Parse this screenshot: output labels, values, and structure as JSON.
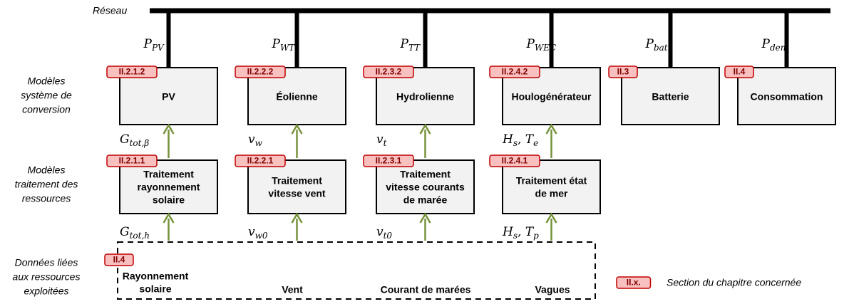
{
  "network_label": "Réseau",
  "row_labels": [
    [
      "Modèles",
      "système de",
      "conversion"
    ],
    [
      "Modèles",
      "traitement des",
      "ressources"
    ],
    [
      "Données liées",
      "aux ressources",
      "exploitées"
    ]
  ],
  "conversion": [
    {
      "tag": "II.2.1.2",
      "name": "PV",
      "power": [
        {
          "t": "P",
          "s": "PV"
        }
      ]
    },
    {
      "tag": "II.2.2.2",
      "name": "Éolienne",
      "power": [
        {
          "t": "P",
          "s": "WT"
        }
      ]
    },
    {
      "tag": "II.2.3.2",
      "name": "Hydrolienne",
      "power": [
        {
          "t": "P",
          "s": "TT"
        }
      ]
    },
    {
      "tag": "II.2.4.2",
      "name": "Houlogénérateur",
      "power": [
        {
          "t": "P",
          "s": "WEC"
        }
      ]
    },
    {
      "tag": "II.3",
      "name": "Batterie",
      "power": [
        {
          "t": "P",
          "s": "bat"
        }
      ]
    },
    {
      "tag": "II.4",
      "name": "Consommation",
      "power": [
        {
          "t": "P",
          "s": "dem"
        }
      ]
    }
  ],
  "processing": [
    {
      "tag": "II.2.1.1",
      "lines": [
        "Traitement",
        "rayonnement",
        "solaire"
      ],
      "output": [
        {
          "t": "G",
          "s": "tot,β"
        }
      ],
      "input": [
        {
          "t": "G",
          "s": "tot,h"
        }
      ]
    },
    {
      "tag": "II.2.2.1",
      "lines": [
        "Traitement",
        "vitesse vent"
      ],
      "output": [
        {
          "t": "v",
          "s": "w"
        }
      ],
      "input": [
        {
          "t": "v",
          "s": "w0"
        }
      ]
    },
    {
      "tag": "II.2.3.1",
      "lines": [
        "Traitement",
        "vitesse courants",
        "de marée"
      ],
      "output": [
        {
          "t": "v",
          "s": "t"
        }
      ],
      "input": [
        {
          "t": "v",
          "s": "t0"
        }
      ]
    },
    {
      "tag": "II.2.4.1",
      "lines": [
        "Traitement état",
        "de mer"
      ],
      "output": [
        {
          "t": "H",
          "s": "s"
        },
        {
          "t": ", T",
          "s": "e"
        }
      ],
      "input": [
        {
          "t": "H",
          "s": "s"
        },
        {
          "t": ", T",
          "s": "p"
        }
      ]
    }
  ],
  "resources": {
    "tag": "II.4",
    "items": [
      [
        "Rayonnement",
        "solaire"
      ],
      [
        "Vent"
      ],
      [
        "Courant de marées"
      ],
      [
        "Vagues"
      ]
    ]
  },
  "legend": {
    "tag": "II.x.",
    "text": "Section du chapitre concernée"
  }
}
